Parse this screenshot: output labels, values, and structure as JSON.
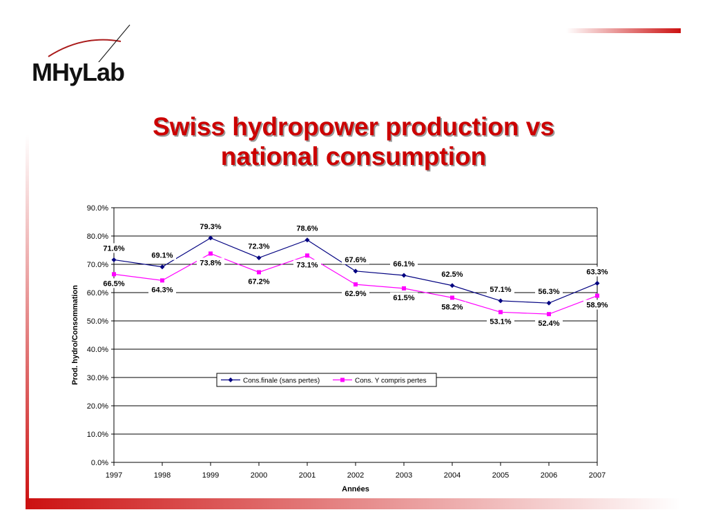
{
  "logo": {
    "text": "MHyLab"
  },
  "title": {
    "line1": "Swiss hydropower production vs",
    "line2": "national consumption"
  },
  "colors": {
    "accent": "#cc0000",
    "series1": "#000080",
    "series2": "#ff00ff"
  },
  "chart_data": {
    "type": "line",
    "xlabel": "Années",
    "ylabel": "Prod. hydro/Consommation",
    "x": [
      "1997",
      "1998",
      "1999",
      "2000",
      "2001",
      "2002",
      "2003",
      "2004",
      "2005",
      "2006",
      "2007"
    ],
    "ylim": [
      0,
      90
    ],
    "yticks": [
      "0.0%",
      "10.0%",
      "20.0%",
      "30.0%",
      "40.0%",
      "50.0%",
      "60.0%",
      "70.0%",
      "80.0%",
      "90.0%"
    ],
    "grid": true,
    "legend": "inside-center",
    "series": [
      {
        "name": "Cons.finale (sans pertes)",
        "color": "#000080",
        "marker": "diamond",
        "values": [
          71.6,
          69.1,
          79.3,
          72.3,
          78.6,
          67.6,
          66.1,
          62.5,
          57.1,
          56.3,
          63.3
        ],
        "labels": [
          "71.6%",
          "69.1%",
          "79.3%",
          "72.3%",
          "78.6%",
          "67.6%",
          "66.1%",
          "62.5%",
          "57.1%",
          "56.3%",
          "63.3%"
        ]
      },
      {
        "name": "Cons. Y compris pertes",
        "color": "#ff00ff",
        "marker": "square",
        "values": [
          66.5,
          64.3,
          73.8,
          67.2,
          73.1,
          62.9,
          61.5,
          58.2,
          53.1,
          52.4,
          58.9
        ],
        "labels": [
          "66.5%",
          "64.3%",
          "73.8%",
          "67.2%",
          "73.1%",
          "62.9%",
          "61.5%",
          "58.2%",
          "53.1%",
          "52.4%",
          "58.9%"
        ]
      }
    ]
  }
}
